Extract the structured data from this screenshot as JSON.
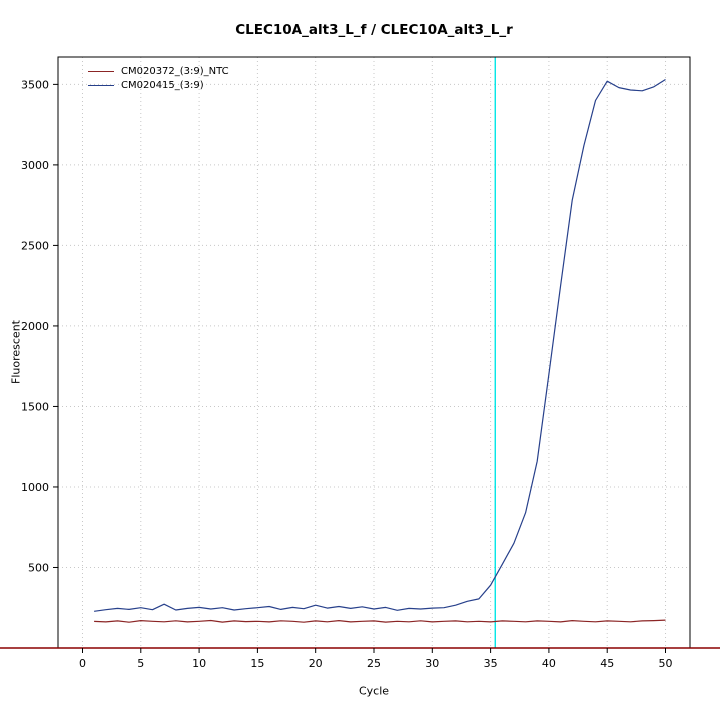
{
  "page": {
    "background": "#ffffff"
  },
  "chart_data": {
    "type": "line",
    "title": "CLEC10A_alt3_L_f / CLEC10A_alt3_L_r",
    "xlabel": "Cycle",
    "ylabel": "Fluorescent",
    "xlim": [
      -2.1,
      52.1
    ],
    "ylim": [
      0,
      3670
    ],
    "x_ticks": [
      0,
      5,
      10,
      15,
      20,
      25,
      30,
      35,
      40,
      45,
      50
    ],
    "y_ticks": [
      500,
      1000,
      1500,
      2000,
      2500,
      3000,
      3500
    ],
    "grid": true,
    "grid_color": "#c8c8c8",
    "box_color": "#000000",
    "legend_position": "top-left",
    "vline": {
      "x": 35.4,
      "color": "#00e5e5"
    },
    "baseline": {
      "y": 0,
      "color": "#8b0000"
    },
    "series": [
      {
        "name": "CM020372_(3:9)_NTC",
        "color": "#8b2525",
        "x": [
          1,
          2,
          3,
          4,
          5,
          6,
          7,
          8,
          9,
          10,
          11,
          12,
          13,
          14,
          15,
          16,
          17,
          18,
          19,
          20,
          21,
          22,
          23,
          24,
          25,
          26,
          27,
          28,
          29,
          30,
          31,
          32,
          33,
          34,
          35,
          36,
          37,
          38,
          39,
          40,
          41,
          42,
          43,
          44,
          45,
          46,
          47,
          48,
          49,
          50
        ],
        "values": [
          165,
          162,
          168,
          160,
          170,
          166,
          163,
          169,
          162,
          166,
          171,
          161,
          168,
          164,
          166,
          162,
          169,
          166,
          160,
          168,
          163,
          170,
          162,
          166,
          168,
          161,
          166,
          163,
          169,
          162,
          166,
          168,
          163,
          166,
          162,
          168,
          166,
          163,
          168,
          166,
          162,
          170,
          166,
          163,
          168,
          166,
          163,
          168,
          170,
          173
        ]
      },
      {
        "name": "CM020415_(3:9)",
        "color": "#27408b",
        "x": [
          1,
          2,
          3,
          4,
          5,
          6,
          7,
          8,
          9,
          10,
          11,
          12,
          13,
          14,
          15,
          16,
          17,
          18,
          19,
          20,
          21,
          22,
          23,
          24,
          25,
          26,
          27,
          28,
          29,
          30,
          31,
          32,
          33,
          34,
          35,
          36,
          37,
          38,
          39,
          40,
          41,
          42,
          43,
          44,
          45,
          46,
          47,
          48,
          49,
          50
        ],
        "values": [
          228,
          238,
          246,
          240,
          250,
          238,
          272,
          236,
          246,
          252,
          242,
          250,
          236,
          244,
          250,
          258,
          240,
          252,
          244,
          266,
          248,
          258,
          246,
          256,
          242,
          252,
          234,
          246,
          242,
          248,
          250,
          266,
          290,
          305,
          390,
          520,
          650,
          840,
          1160,
          1700,
          2250,
          2780,
          3120,
          3400,
          3520,
          3480,
          3465,
          3460,
          3485,
          3530
        ]
      }
    ]
  }
}
